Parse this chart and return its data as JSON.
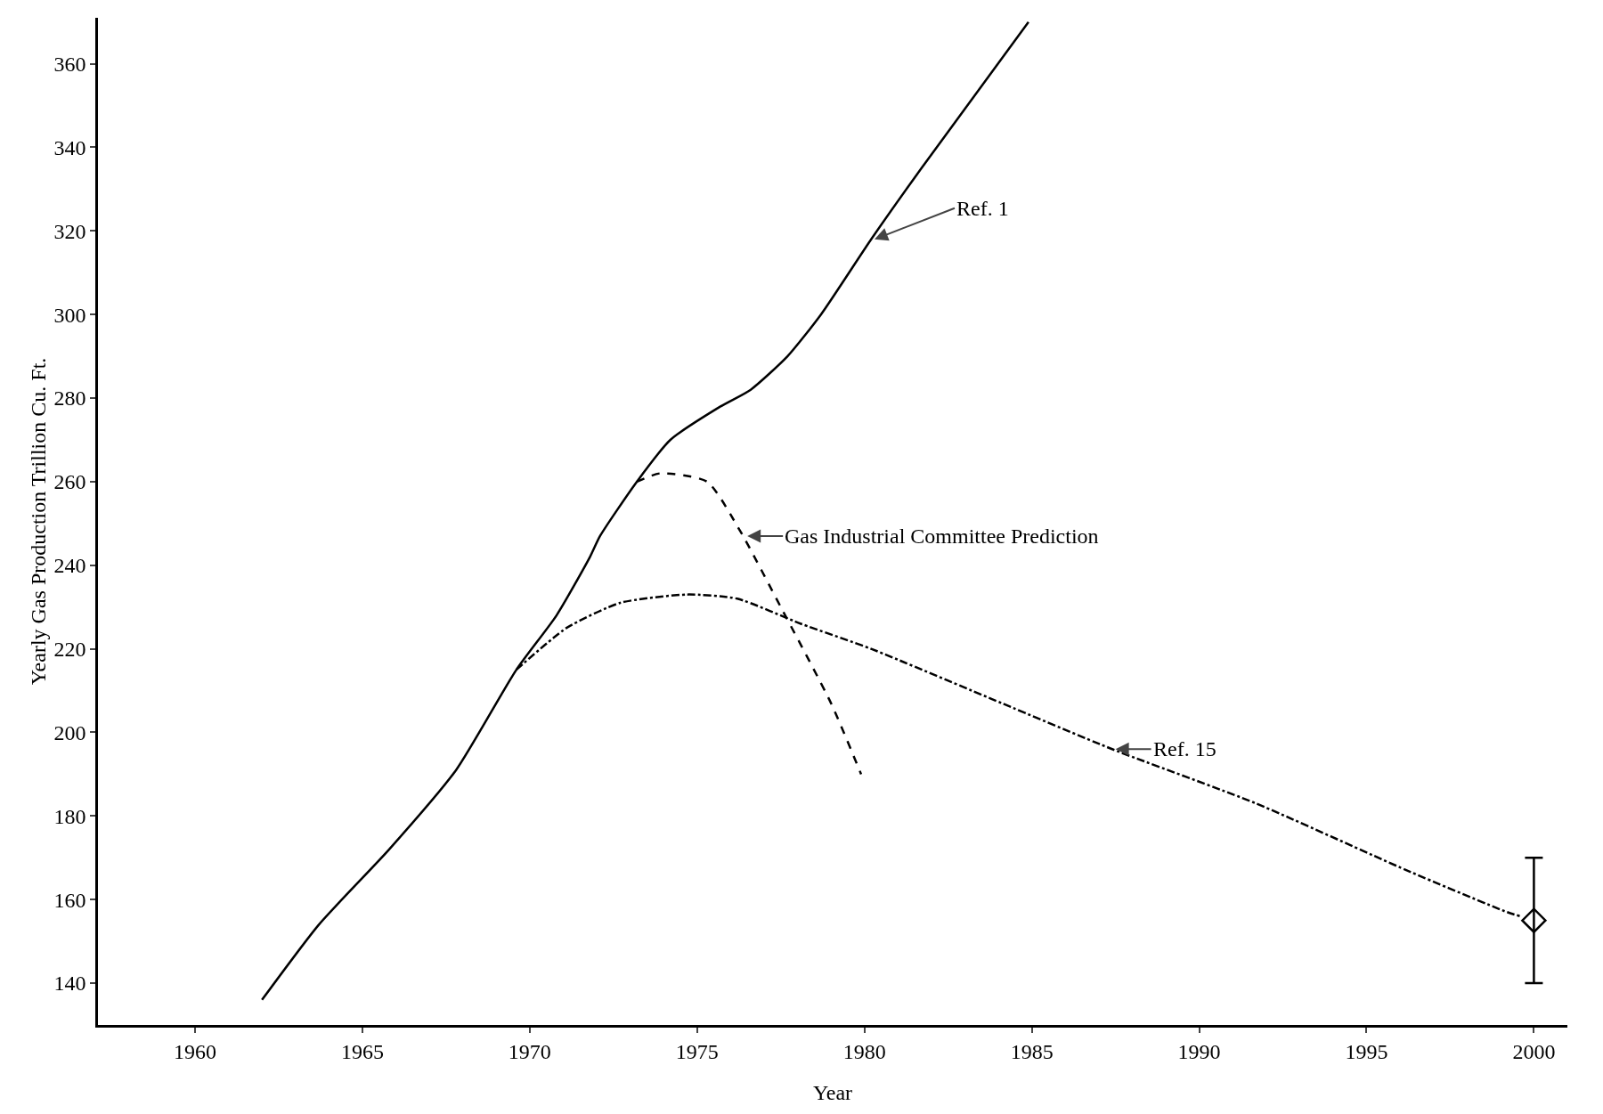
{
  "chart_data": {
    "type": "line",
    "xlabel": "Year",
    "ylabel": "Yearly Gas Production Trillion Cu. Ft.",
    "xlim": [
      1957.1,
      2001
    ],
    "ylim": [
      130,
      371
    ],
    "xticks": [
      1960,
      1965,
      1970,
      1975,
      1980,
      1985,
      1990,
      1995,
      2000
    ],
    "yticks": [
      140,
      160,
      180,
      200,
      220,
      240,
      260,
      280,
      300,
      320,
      340,
      360
    ],
    "grid": false,
    "series": [
      {
        "color": "#000000",
        "line_style": "solid",
        "x": [
          1962,
          1963.7,
          1965.8,
          1967.8,
          1969.6,
          1970.8,
          1971.8,
          1972.1,
          1973.2,
          1974.2,
          1975.7,
          1976.6,
          1977.7,
          1978.7,
          1980.2,
          1981.7,
          1984.9
        ],
        "values": [
          136,
          154,
          172,
          191,
          215,
          228,
          242,
          247,
          260,
          270,
          278,
          282,
          290,
          300,
          318,
          335,
          370
        ]
      },
      {
        "color": "#000000",
        "line_style": "dashed",
        "x": [
          1973.2,
          1973.9,
          1975.3,
          1976.3,
          1977.5,
          1979,
          1979.9
        ],
        "values": [
          260,
          262,
          260,
          248,
          230,
          207,
          190
        ]
      },
      {
        "color": "#000000",
        "line_style": "dashdot",
        "x": [
          1969.6,
          1971.1,
          1972.7,
          1974.7,
          1976.2,
          1978.1,
          1980.2,
          1984.1,
          1987.4,
          1991.7,
          1996.2,
          1999.2,
          1999.6
        ],
        "values": [
          215,
          225,
          231,
          233,
          232,
          226,
          220,
          207,
          196,
          183,
          167,
          157,
          156
        ]
      },
      {
        "type": "scatter",
        "color": "#000000",
        "marker": "diamond",
        "x": [
          2000
        ],
        "values": [
          155
        ],
        "errors": [
          [
            140,
            170
          ]
        ]
      }
    ],
    "annotations": [
      {
        "text": "Ref. 1",
        "x": 1980.3,
        "y": 318
      },
      {
        "text": "Gas Industrial Committee Prediction",
        "x": 1976.5,
        "y": 247
      },
      {
        "text": "Ref. 15",
        "x": 1987.5,
        "y": 196
      }
    ]
  }
}
